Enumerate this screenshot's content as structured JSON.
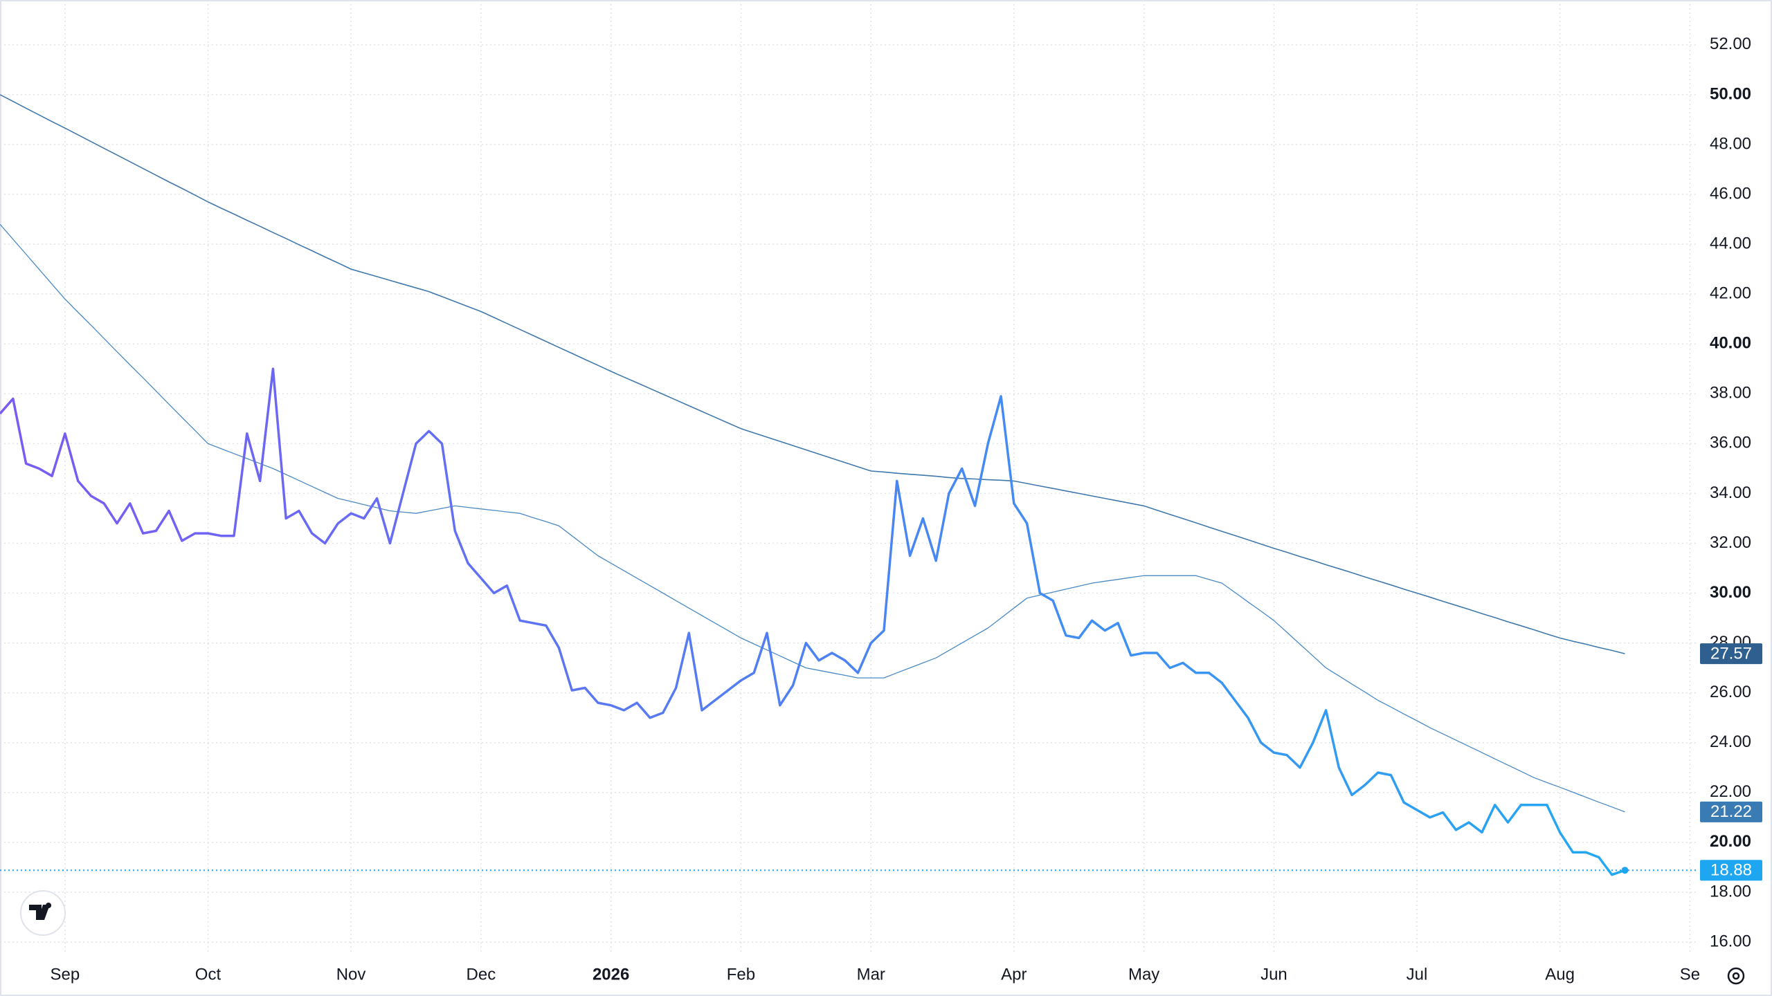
{
  "chart_data": {
    "type": "line",
    "categories": [
      null,
      null,
      null,
      null,
      null,
      "Sep",
      null,
      null,
      null,
      null,
      null,
      null,
      null,
      null,
      null,
      null,
      "Oct",
      null,
      null,
      null,
      null,
      null,
      null,
      null,
      null,
      null,
      null,
      "Nov",
      null,
      null,
      null,
      null,
      null,
      null,
      null,
      null,
      null,
      "Dec",
      null,
      null,
      null,
      null,
      null,
      null,
      null,
      null,
      null,
      "2026",
      null,
      null,
      null,
      null,
      null,
      null,
      null,
      null,
      null,
      "Feb",
      null,
      null,
      null,
      null,
      null,
      null,
      null,
      null,
      null,
      "Mar",
      null,
      null,
      null,
      null,
      null,
      null,
      null,
      null,
      null,
      null,
      "Apr",
      null,
      null,
      null,
      null,
      null,
      null,
      null,
      null,
      null,
      "May",
      null,
      null,
      null,
      null,
      null,
      null,
      null,
      null,
      null,
      "Jun",
      null,
      null,
      null,
      null,
      null,
      null,
      null,
      null,
      null,
      null,
      "Jul",
      null,
      null,
      null,
      null,
      null,
      null,
      null,
      null,
      null,
      null,
      "Aug",
      null,
      null,
      null,
      null,
      null,
      null,
      null,
      null,
      null,
      "Se"
    ],
    "series": [
      {
        "color": "#7b5af3",
        "color_end": "#22a9f2",
        "width": 3.5,
        "last_marker": true,
        "values": [
          37.2,
          37.8,
          35.2,
          35.0,
          34.7,
          36.4,
          34.5,
          33.9,
          33.6,
          32.8,
          33.6,
          32.4,
          32.5,
          33.3,
          32.1,
          32.4,
          32.4,
          32.3,
          32.3,
          36.4,
          34.5,
          39.0,
          33.0,
          33.3,
          32.4,
          32.0,
          32.8,
          33.2,
          33.0,
          33.8,
          32.0,
          34.0,
          36.0,
          36.5,
          36.0,
          32.5,
          31.2,
          30.6,
          30.0,
          30.3,
          28.9,
          28.8,
          28.7,
          27.8,
          26.1,
          26.2,
          25.6,
          25.5,
          25.3,
          25.6,
          25.0,
          25.2,
          26.2,
          28.4,
          25.3,
          25.7,
          26.1,
          26.5,
          26.8,
          28.4,
          25.5,
          26.3,
          28.0,
          27.3,
          27.6,
          27.3,
          26.8,
          28.0,
          28.5,
          34.5,
          31.5,
          33.0,
          31.3,
          34.0,
          35.0,
          33.5,
          36.0,
          37.9,
          33.6,
          32.8,
          30.0,
          29.7,
          28.3,
          28.2,
          28.9,
          28.5,
          28.8,
          27.5,
          27.6,
          27.6,
          27.0,
          27.2,
          26.8,
          26.8,
          26.4,
          25.7,
          25.0,
          24.0,
          23.6,
          23.5,
          23.0,
          24.0,
          25.3,
          23.0,
          21.9,
          22.3,
          22.8,
          22.7,
          21.6,
          21.3,
          21.0,
          21.2,
          20.5,
          20.8,
          20.4,
          21.5,
          20.8,
          21.5,
          21.5,
          21.5,
          20.4,
          19.6,
          19.6,
          19.4,
          18.7,
          18.88,
          null,
          null,
          null,
          null,
          null
        ]
      },
      {
        "color": "#3f78ad",
        "width": 1.6,
        "values": [
          50.0,
          49.73,
          49.46,
          49.19,
          48.92,
          48.66,
          48.39,
          48.12,
          47.85,
          47.58,
          47.31,
          47.04,
          46.77,
          46.5,
          46.24,
          45.97,
          45.7,
          45.45,
          45.21,
          44.96,
          44.72,
          44.47,
          44.23,
          43.98,
          43.74,
          43.49,
          43.25,
          43.0,
          42.85,
          42.7,
          42.55,
          42.4,
          42.25,
          42.1,
          41.9,
          41.7,
          41.5,
          41.3,
          41.06,
          40.82,
          40.58,
          40.34,
          40.1,
          39.86,
          39.62,
          39.38,
          39.14,
          38.9,
          38.67,
          38.44,
          38.21,
          37.98,
          37.75,
          37.52,
          37.29,
          37.06,
          36.83,
          36.6,
          36.43,
          36.26,
          36.09,
          35.92,
          35.75,
          35.58,
          35.41,
          35.24,
          35.07,
          34.9,
          34.86,
          34.81,
          34.77,
          34.73,
          34.69,
          34.64,
          34.6,
          34.58,
          34.55,
          34.53,
          34.5,
          34.4,
          34.3,
          34.2,
          34.1,
          34.0,
          33.9,
          33.8,
          33.7,
          33.6,
          33.5,
          33.33,
          33.16,
          32.99,
          32.82,
          32.65,
          32.48,
          32.31,
          32.14,
          31.97,
          31.8,
          31.64,
          31.47,
          31.31,
          31.14,
          30.98,
          30.82,
          30.65,
          30.49,
          30.33,
          30.16,
          30.0,
          29.84,
          29.67,
          29.51,
          29.35,
          29.18,
          29.02,
          28.85,
          28.69,
          28.53,
          28.36,
          28.2,
          28.07,
          27.95,
          27.82,
          27.7,
          27.57,
          null,
          null,
          null,
          null,
          null
        ]
      },
      {
        "color": "#4a8ac4",
        "width": 1.3,
        "values": [
          44.8,
          44.2,
          43.6,
          43.0,
          42.4,
          41.8,
          41.27,
          40.75,
          40.22,
          39.69,
          39.16,
          38.64,
          38.11,
          37.58,
          37.05,
          36.53,
          36.0,
          35.8,
          35.6,
          35.4,
          35.2,
          35.0,
          34.76,
          34.52,
          34.28,
          34.04,
          33.8,
          33.68,
          33.55,
          33.43,
          33.3,
          33.25,
          33.2,
          33.3,
          33.4,
          33.5,
          33.44,
          33.38,
          33.32,
          33.26,
          33.2,
          33.03,
          32.87,
          32.7,
          32.3,
          31.9,
          31.5,
          31.2,
          30.9,
          30.6,
          30.3,
          30.0,
          29.7,
          29.4,
          29.1,
          28.8,
          28.5,
          28.2,
          27.96,
          27.72,
          27.48,
          27.24,
          27.0,
          26.9,
          26.8,
          26.7,
          26.6,
          26.6,
          26.6,
          26.8,
          27.0,
          27.2,
          27.4,
          27.7,
          28.0,
          28.3,
          28.6,
          29.0,
          29.4,
          29.8,
          29.92,
          30.04,
          30.16,
          30.28,
          30.4,
          30.48,
          30.55,
          30.63,
          30.7,
          30.7,
          30.7,
          30.7,
          30.7,
          30.55,
          30.4,
          30.03,
          29.65,
          29.28,
          28.9,
          28.43,
          27.95,
          27.48,
          27.0,
          26.68,
          26.35,
          26.03,
          25.7,
          25.43,
          25.15,
          24.88,
          24.6,
          24.35,
          24.1,
          23.85,
          23.6,
          23.35,
          23.1,
          22.85,
          22.6,
          22.4,
          22.21,
          22.01,
          21.81,
          21.61,
          21.42,
          21.22,
          null,
          null,
          null,
          null,
          null
        ]
      }
    ],
    "ylim": [
      15.5,
      53.8
    ],
    "yticks": [
      {
        "value": 16,
        "label": "16.00"
      },
      {
        "value": 18,
        "label": "18.00"
      },
      {
        "value": 20,
        "label": "20.00"
      },
      {
        "value": 22,
        "label": "22.00"
      },
      {
        "value": 24,
        "label": "24.00"
      },
      {
        "value": 26,
        "label": "26.00"
      },
      {
        "value": 28,
        "label": "28.00"
      },
      {
        "value": 30,
        "label": "30.00"
      },
      {
        "value": 32,
        "label": "32.00"
      },
      {
        "value": 34,
        "label": "34.00"
      },
      {
        "value": 36,
        "label": "36.00"
      },
      {
        "value": 38,
        "label": "38.00"
      },
      {
        "value": 40,
        "label": "40.00"
      },
      {
        "value": 42,
        "label": "42.00"
      },
      {
        "value": 44,
        "label": "44.00"
      },
      {
        "value": 46,
        "label": "46.00"
      },
      {
        "value": 48,
        "label": "48.00"
      },
      {
        "value": 50,
        "label": "50.00"
      },
      {
        "value": 52,
        "label": "52.00"
      }
    ],
    "grid": true,
    "badge_colors": [
      "#1ea7f0",
      "#2f5f8e",
      "#3a7bb3"
    ]
  }
}
